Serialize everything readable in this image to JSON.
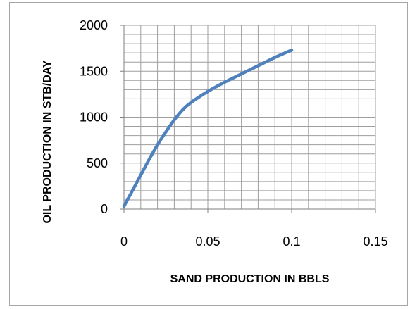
{
  "chart_data": {
    "type": "line",
    "xlabel": "SAND PRODUCTION IN BBLS",
    "ylabel": "OIL PRODUCTION IN STB/DAY",
    "xlim": [
      0,
      0.15
    ],
    "ylim": [
      0,
      2000
    ],
    "x_ticks": [
      0,
      0.05,
      0.1,
      0.15
    ],
    "x_tick_labels": [
      "0",
      "0.05",
      "0.1",
      "0.15"
    ],
    "y_ticks": [
      0,
      500,
      1000,
      1500,
      2000
    ],
    "y_tick_labels": [
      "0",
      "500",
      "1000",
      "1500",
      "2000"
    ],
    "grid": true,
    "legend": "none",
    "series": [
      {
        "color": "#4f81bd",
        "x": [
          0,
          0.005,
          0.01,
          0.015,
          0.02,
          0.025,
          0.03,
          0.035,
          0.04,
          0.05,
          0.06,
          0.07,
          0.08,
          0.09,
          0.1
        ],
        "y": [
          30,
          200,
          370,
          540,
          700,
          840,
          970,
          1080,
          1160,
          1280,
          1380,
          1470,
          1560,
          1650,
          1730
        ]
      }
    ]
  }
}
